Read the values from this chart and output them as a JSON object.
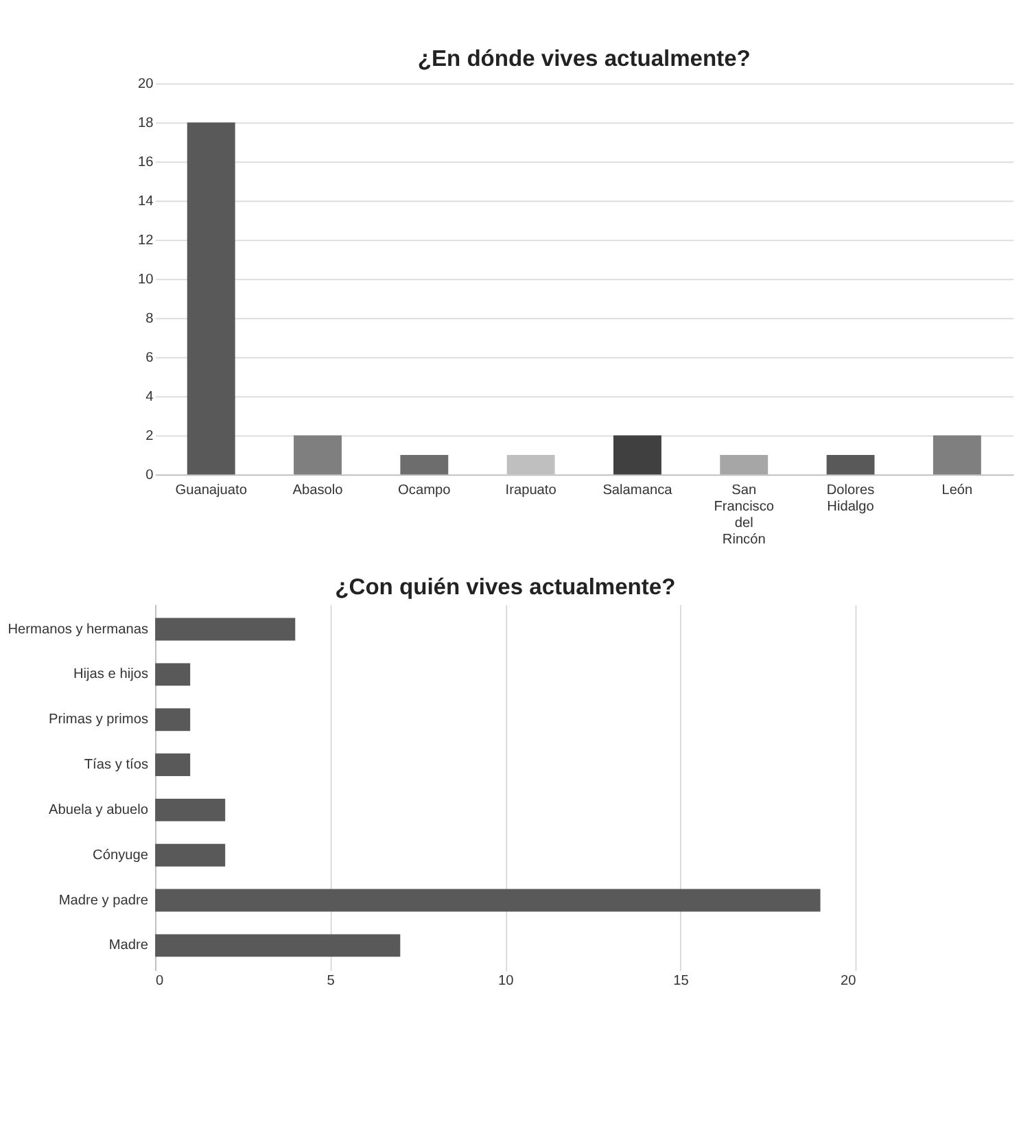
{
  "chart_data": [
    {
      "type": "bar",
      "title": "¿En dónde vives actualmente?",
      "categories": [
        "Guanajuato",
        "Abasolo",
        "Ocampo",
        "Irapuato",
        "Salamanca",
        "San Francisco del Rincón",
        "Dolores Hidalgo",
        "León"
      ],
      "values": [
        18,
        2,
        1,
        1,
        2,
        1,
        1,
        2
      ],
      "colors": [
        "#595959",
        "#7f7f7f",
        "#6d6d6d",
        "#bfbfbf",
        "#404040",
        "#a6a6a6",
        "#595959",
        "#7f7f7f"
      ],
      "ylim": [
        0,
        20
      ],
      "yticks": [
        0,
        2,
        4,
        6,
        8,
        10,
        12,
        14,
        16,
        18,
        20
      ],
      "grid": "y"
    },
    {
      "type": "bar",
      "orientation": "horizontal",
      "title": "¿Con quién vives actualmente?",
      "categories": [
        "Hermanos y hermanas",
        "Hijas e hijos",
        "Primas y primos",
        "Tías y tíos",
        "Abuela y abuelo",
        "Cónyuge",
        "Madre y padre",
        "Madre"
      ],
      "values": [
        4,
        1,
        1,
        1,
        2,
        2,
        19,
        7
      ],
      "color": "#595959",
      "xlim": [
        0,
        20
      ],
      "xticks": [
        0,
        5,
        10,
        15,
        20
      ],
      "grid": "x"
    }
  ]
}
